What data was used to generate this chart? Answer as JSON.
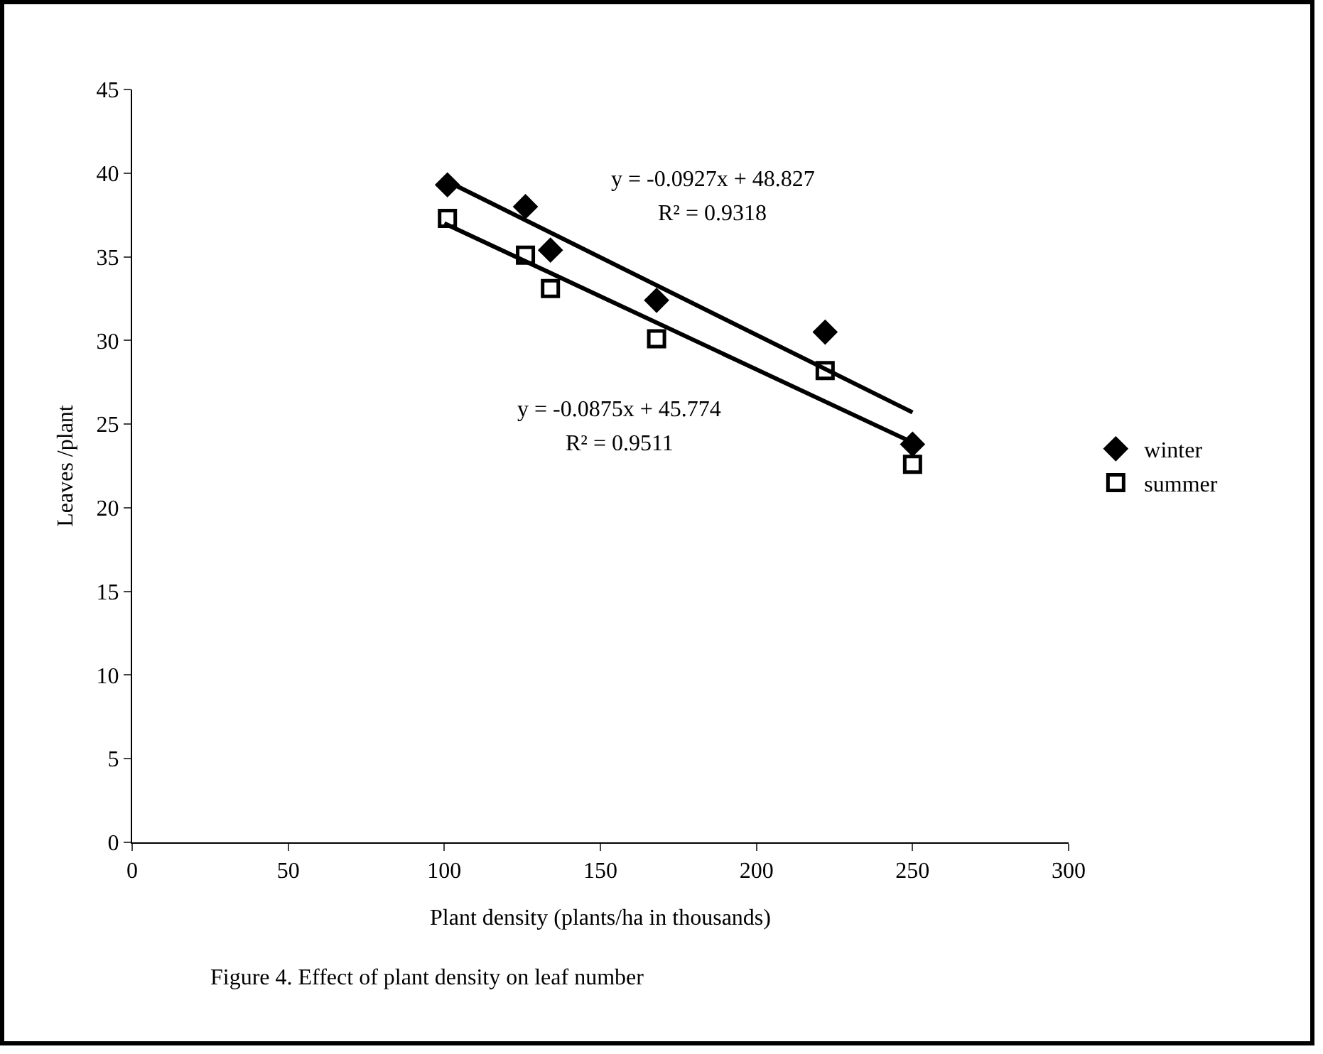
{
  "chart_data": {
    "type": "scatter",
    "xlabel": "Plant density (plants/ha in thousands)",
    "ylabel": "Leaves /plant",
    "xlim": [
      0,
      300
    ],
    "xticks": [
      0,
      50,
      100,
      150,
      200,
      250,
      300
    ],
    "ylim": [
      0,
      45
    ],
    "yticks": [
      0,
      5,
      10,
      15,
      20,
      25,
      30,
      35,
      40,
      45
    ],
    "grid": false,
    "legend": "right",
    "series": [
      {
        "name": "winter",
        "color": "#000000",
        "marker": "diamond",
        "x": [
          101,
          126,
          134,
          168,
          222,
          250
        ],
        "values": [
          39.3,
          38,
          35.4,
          32.4,
          30.5,
          23.8
        ]
      },
      {
        "name": "summer",
        "color": "#000000",
        "marker": "square",
        "x": [
          101,
          126,
          134,
          168,
          222,
          250
        ],
        "values": [
          37.3,
          35.1,
          33.1,
          30.1,
          28.2,
          22.6
        ]
      },
      {
        "type": "line",
        "color": "#000000",
        "marker": "none",
        "line_style": "solid",
        "x": [
          100,
          250
        ],
        "values": [
          39.6,
          25.7
        ]
      },
      {
        "type": "line",
        "color": "#000000",
        "marker": "none",
        "line_style": "solid",
        "x": [
          100,
          250
        ],
        "values": [
          37,
          23.9
        ]
      }
    ],
    "annotations": [
      "y = -0.0927x + 48.827",
      "R² = 0.9318",
      "y = -0.0875x + 45.774",
      "R² = 0.9511",
      "Figure 4. Effect of plant density on leaf number"
    ]
  }
}
